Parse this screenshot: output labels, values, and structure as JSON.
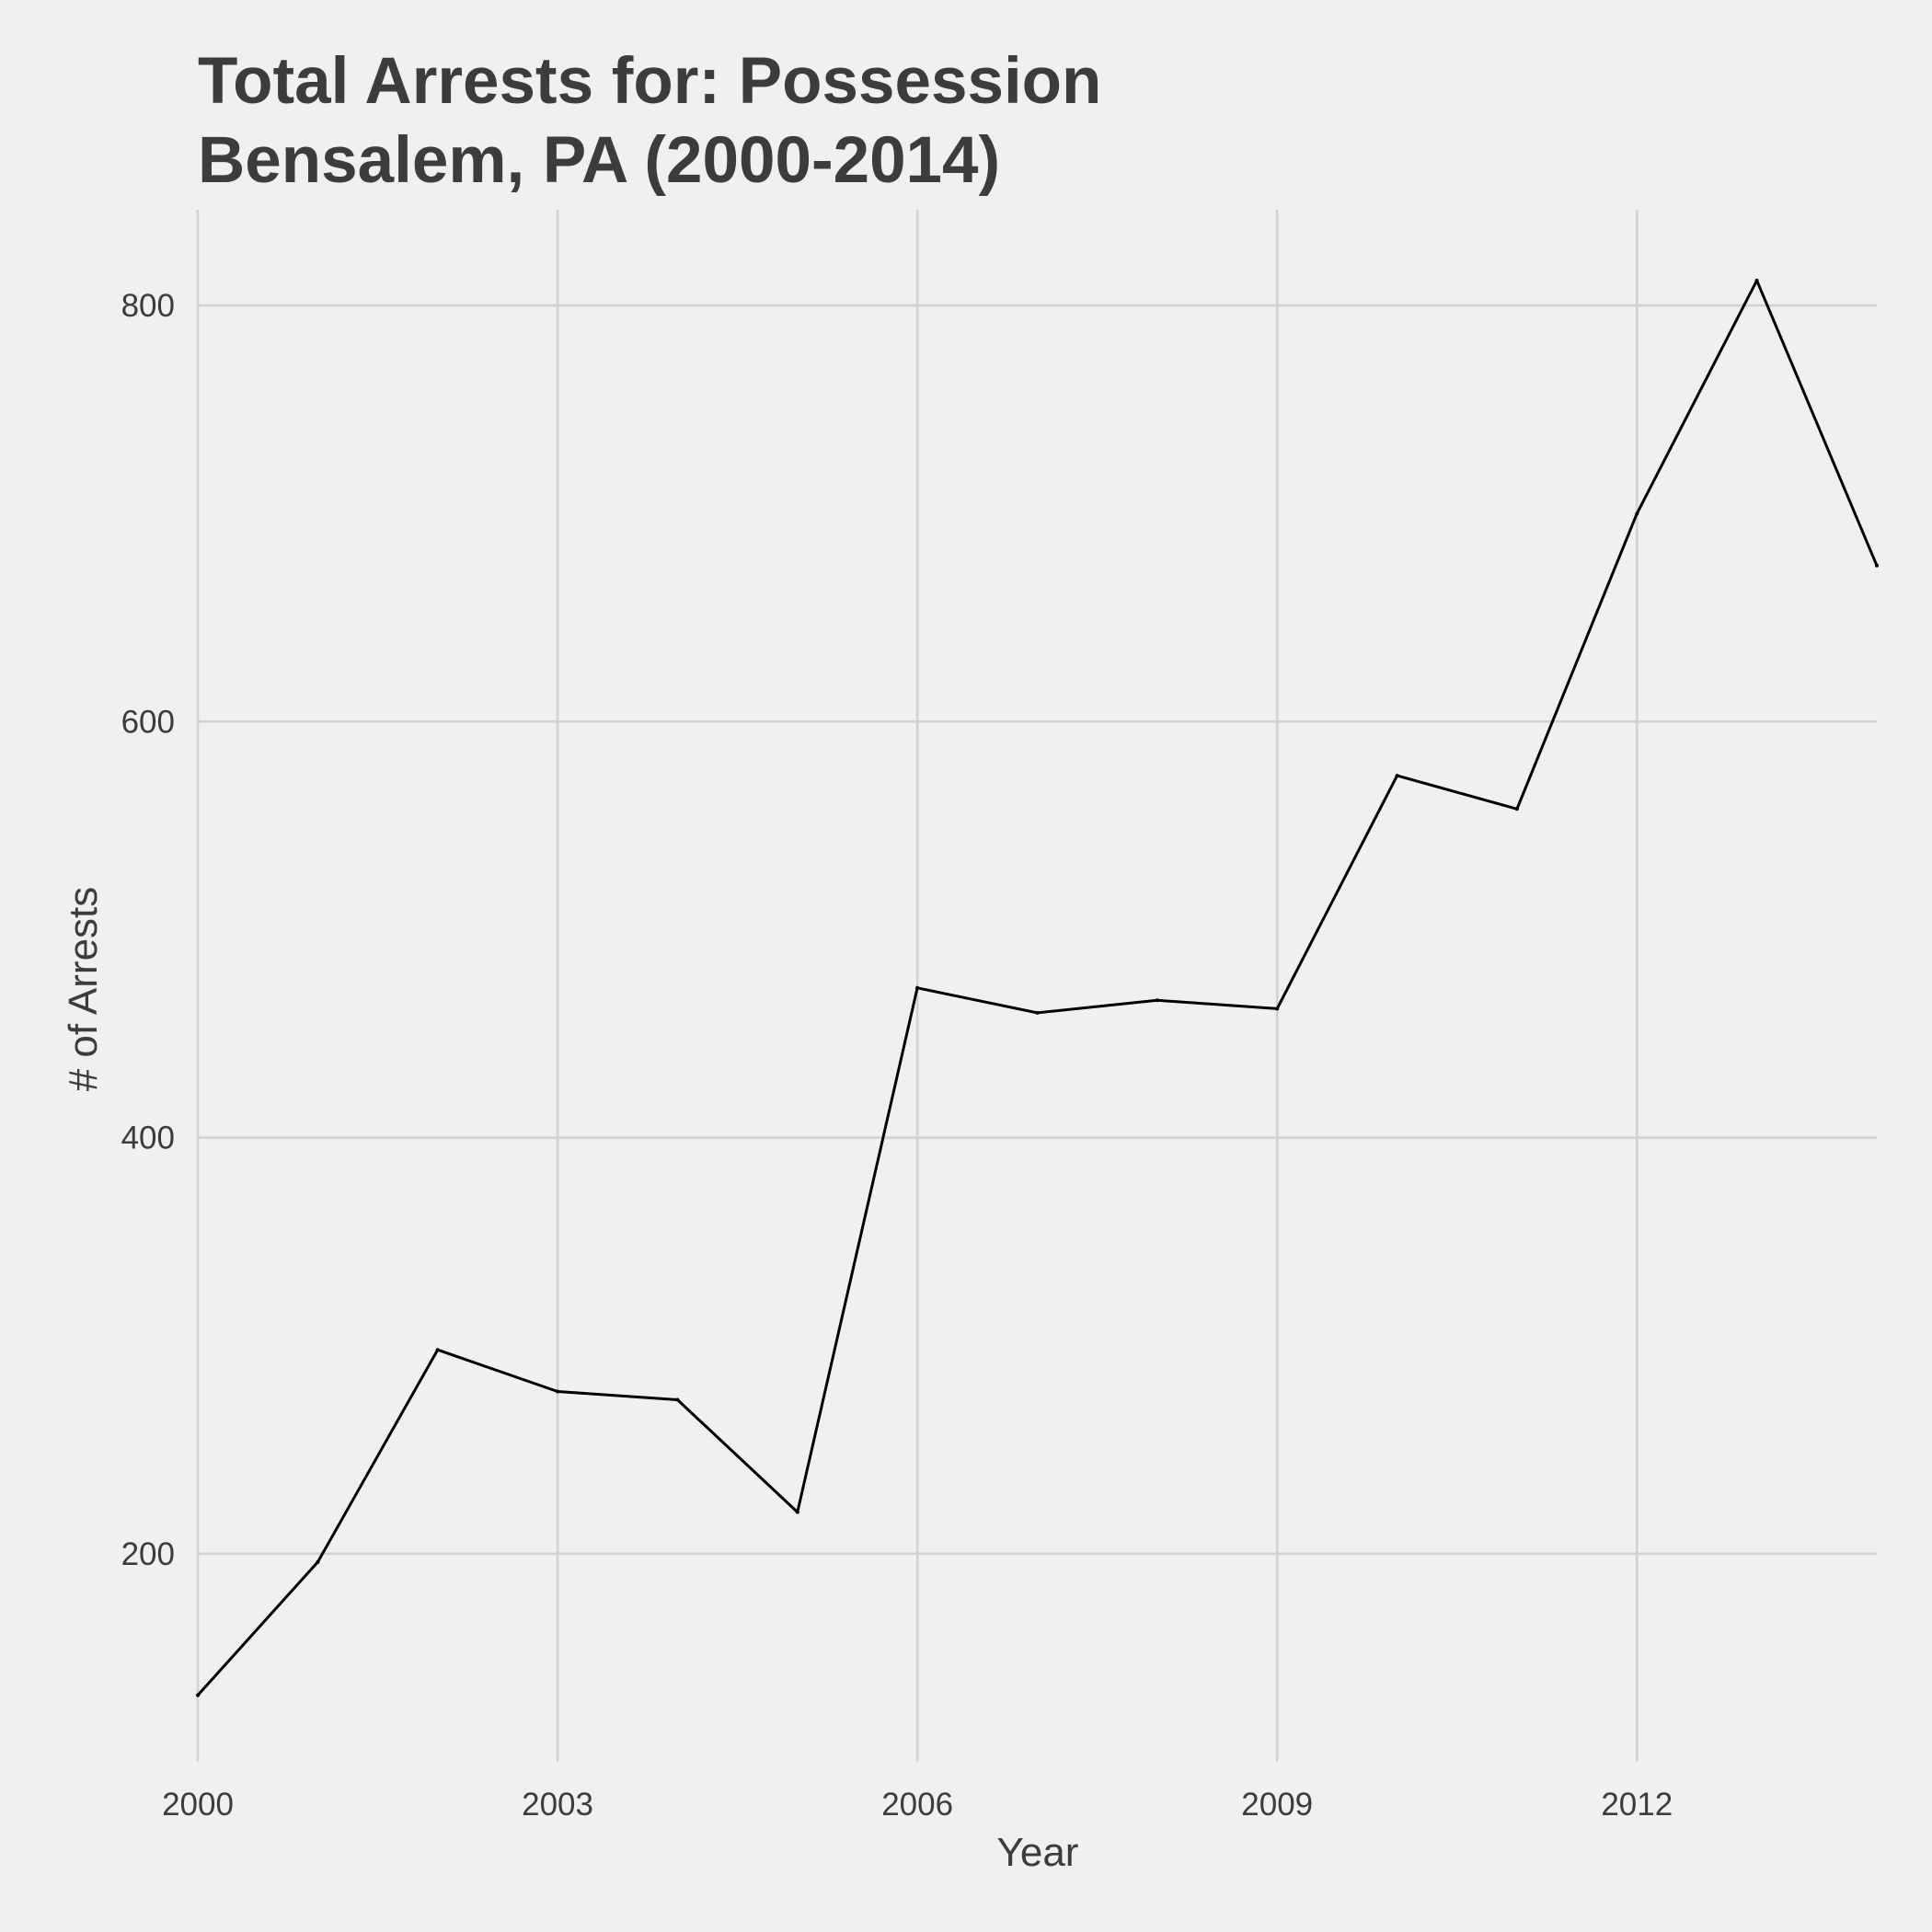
{
  "chart_data": {
    "type": "line",
    "title": "Total Arrests for: Possession",
    "subtitle": "Bensalem, PA (2000-2014)",
    "xlabel": "Year",
    "ylabel": "# of Arrests",
    "x": [
      2000,
      2001,
      2002,
      2003,
      2004,
      2005,
      2006,
      2007,
      2008,
      2009,
      2010,
      2011,
      2012,
      2013,
      2014
    ],
    "series": [
      {
        "values": [
          132,
          196,
          298,
          278,
          274,
          220,
          472,
          460,
          466,
          462,
          574,
          558,
          700,
          812,
          675
        ]
      }
    ],
    "xlim": [
      2000,
      2014
    ],
    "ylim": [
      100,
      846
    ],
    "x_ticks": [
      2000,
      2003,
      2006,
      2009,
      2012
    ],
    "x_tick_labels": [
      "2000",
      "2003",
      "2006",
      "2009",
      "2012"
    ],
    "y_ticks": [
      200,
      400,
      600,
      800
    ],
    "y_tick_labels": [
      "200",
      "400",
      "600",
      "800"
    ],
    "grid": true,
    "legend": "none",
    "colors": {
      "background": "#f0f0f0",
      "grid": "#d2d2d2",
      "line": "#000000",
      "text": "#3c3c3c"
    }
  }
}
